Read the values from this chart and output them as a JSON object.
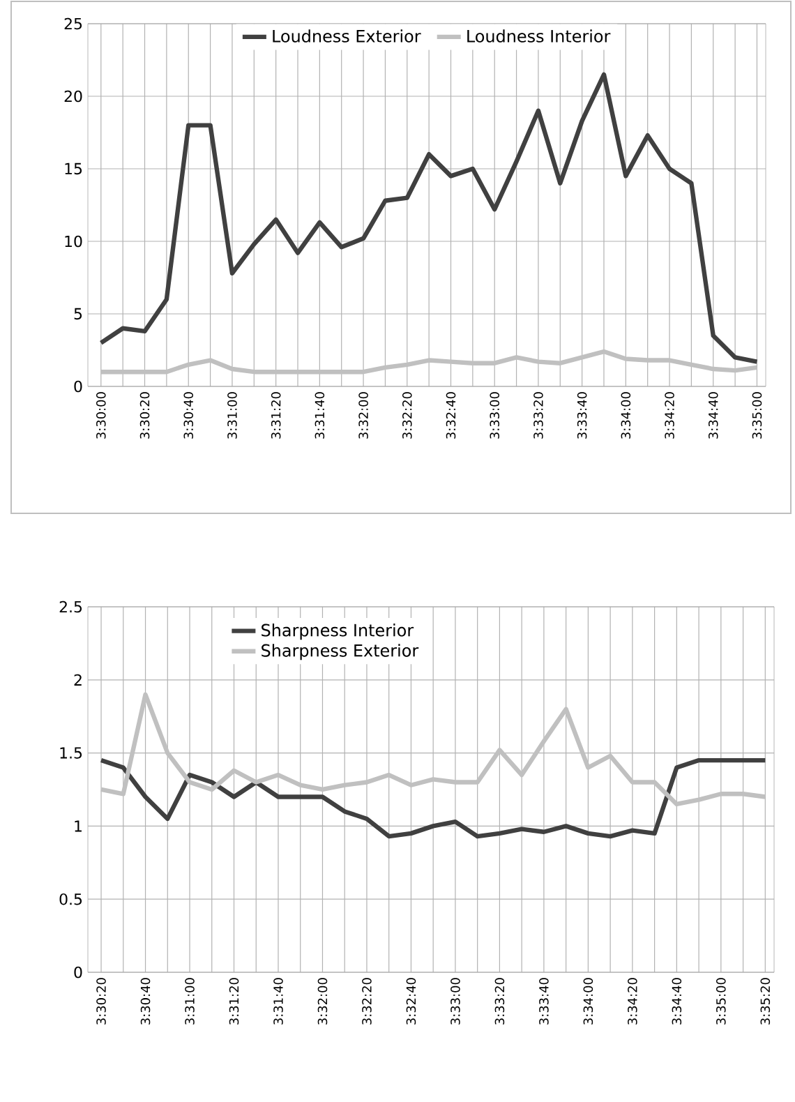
{
  "chart_data": [
    {
      "type": "line",
      "categories": [
        "3:30:00",
        null,
        "3:30:20",
        null,
        "3:30:40",
        null,
        "3:31:00",
        null,
        "3:31:20",
        null,
        "3:31:40",
        null,
        "3:32:00",
        null,
        "3:32:20",
        null,
        "3:32:40",
        null,
        "3:33:00",
        null,
        "3:33:20",
        null,
        "3:33:40",
        null,
        "3:34:00",
        null,
        "3:34:20",
        null,
        "3:34:40",
        null,
        "3:35:00"
      ],
      "series": [
        {
          "name": "Loudness Exterior",
          "color": "#404040",
          "values": [
            3,
            4,
            3.8,
            6,
            18,
            18,
            7.8,
            9.8,
            11.5,
            9.2,
            11.3,
            9.6,
            10.2,
            12.8,
            13,
            16,
            14.5,
            15,
            12.2,
            15.5,
            19,
            14,
            18.3,
            21.5,
            14.5,
            17.3,
            15,
            14,
            3.5,
            2,
            1.7
          ]
        },
        {
          "name": "Loudness Interior",
          "color": "#c0c0c0",
          "values": [
            1,
            1,
            1,
            1,
            1.5,
            1.8,
            1.2,
            1,
            1,
            1,
            1,
            1,
            1,
            1.3,
            1.5,
            1.8,
            1.7,
            1.6,
            1.6,
            2,
            1.7,
            1.6,
            2,
            2.4,
            1.9,
            1.8,
            1.8,
            1.5,
            1.2,
            1.1,
            1.3
          ]
        }
      ],
      "ylim": [
        0,
        25
      ],
      "yticks": [
        0,
        5,
        10,
        15,
        20,
        25
      ],
      "grid": true,
      "legend": "top",
      "marker": "none"
    },
    {
      "type": "line",
      "categories": [
        "3:30:20",
        null,
        "3:30:40",
        null,
        "3:31:00",
        null,
        "3:31:20",
        null,
        "3:31:40",
        null,
        "3:32:00",
        null,
        "3:32:20",
        null,
        "3:32:40",
        null,
        "3:33:00",
        null,
        "3:33:20",
        null,
        "3:33:40",
        null,
        "3:34:00",
        null,
        "3:34:20",
        null,
        "3:34:40",
        null,
        "3:35:00",
        null,
        "3:35:20"
      ],
      "series": [
        {
          "name": "Sharpness Interior",
          "color": "#404040",
          "values": [
            1.45,
            1.4,
            1.2,
            1.05,
            1.35,
            1.3,
            1.2,
            1.3,
            1.2,
            1.2,
            1.2,
            1.1,
            1.05,
            0.93,
            0.95,
            1.0,
            1.03,
            0.93,
            0.95,
            0.98,
            0.96,
            1.0,
            0.95,
            0.93,
            0.97,
            0.95,
            1.4,
            1.45,
            1.45,
            1.45,
            1.45
          ]
        },
        {
          "name": "Sharpness Exterior",
          "color": "#c0c0c0",
          "values": [
            1.25,
            1.22,
            1.9,
            1.5,
            1.3,
            1.25,
            1.38,
            1.3,
            1.35,
            1.28,
            1.25,
            1.28,
            1.3,
            1.35,
            1.28,
            1.32,
            1.3,
            1.3,
            1.52,
            1.35,
            1.58,
            1.8,
            1.4,
            1.48,
            1.3,
            1.3,
            1.15,
            1.18,
            1.22,
            1.22,
            1.2
          ]
        }
      ],
      "ylim": [
        0,
        2.5
      ],
      "yticks": [
        0,
        0.5,
        1,
        1.5,
        2,
        2.5
      ],
      "grid": true,
      "legend": "top left",
      "marker": "none"
    }
  ]
}
